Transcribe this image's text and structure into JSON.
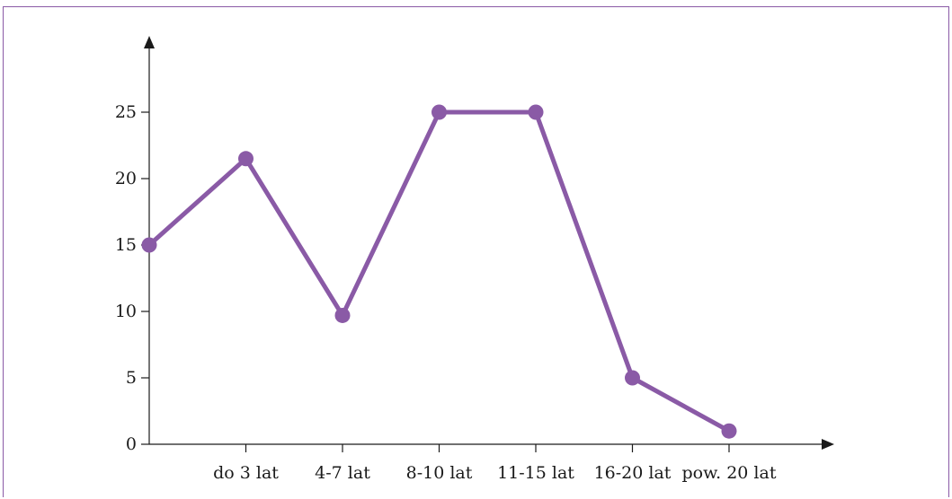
{
  "chart_data": {
    "type": "line",
    "title": "",
    "xlabel": "",
    "ylabel": "",
    "categories": [
      "",
      "do 3 lat",
      "4-7 lat",
      "8-10 lat",
      "11-15 lat",
      "16-20 lat",
      "pow. 20 lat"
    ],
    "series": [
      {
        "values": [
          15,
          21.5,
          9.7,
          25,
          25,
          5,
          1
        ]
      }
    ],
    "ylim": [
      0,
      25
    ],
    "yticks": [
      0,
      5,
      10,
      15,
      20,
      25
    ],
    "grid": false,
    "colors": {
      "line": "#8a5aa6",
      "axis": "#1a1a1a",
      "frame": "#8a5aa6"
    }
  }
}
